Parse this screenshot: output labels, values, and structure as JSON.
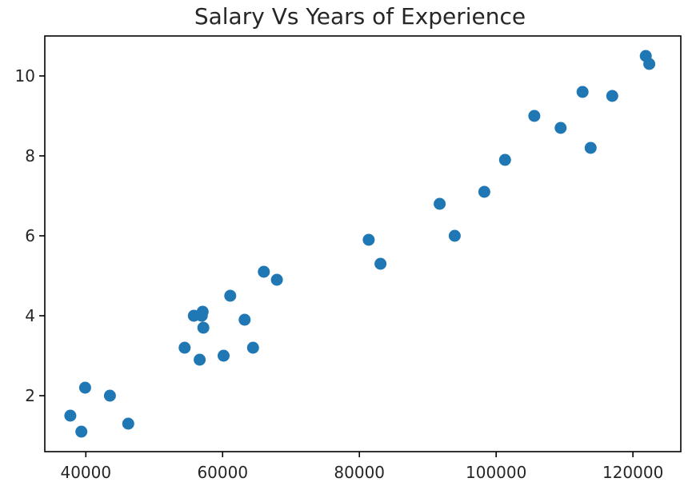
{
  "chart_data": {
    "type": "scatter",
    "title": "Salary Vs Years of Experience",
    "xlabel": "",
    "ylabel": "",
    "xlim": [
      34000,
      127000
    ],
    "ylim": [
      0.6,
      11.0
    ],
    "xticks": [
      40000,
      60000,
      80000,
      100000,
      120000
    ],
    "yticks": [
      2,
      4,
      6,
      8,
      10
    ],
    "xtick_labels": [
      "40000",
      "60000",
      "80000",
      "100000",
      "120000"
    ],
    "ytick_labels": [
      "2",
      "4",
      "6",
      "8",
      "10"
    ],
    "grid": false,
    "legend": "none",
    "marker_color": "#1f77b4",
    "series": [
      {
        "x": [
          39343,
          46205,
          37731,
          43525,
          39891,
          56642,
          60150,
          54445,
          64445,
          57189,
          63218,
          55794,
          56957,
          57081,
          61111,
          67938,
          66029,
          83088,
          81363,
          93940,
          91738,
          98273,
          101302,
          113812,
          109431,
          105582,
          116969,
          112635,
          122391,
          121872
        ],
        "y": [
          1.1,
          1.3,
          1.5,
          2.0,
          2.2,
          2.9,
          3.0,
          3.2,
          3.2,
          3.7,
          3.9,
          4.0,
          4.0,
          4.1,
          4.5,
          4.9,
          5.1,
          5.3,
          5.9,
          6.0,
          6.8,
          7.1,
          7.9,
          8.2,
          8.7,
          9.0,
          9.5,
          9.6,
          10.3,
          10.5
        ]
      }
    ]
  }
}
